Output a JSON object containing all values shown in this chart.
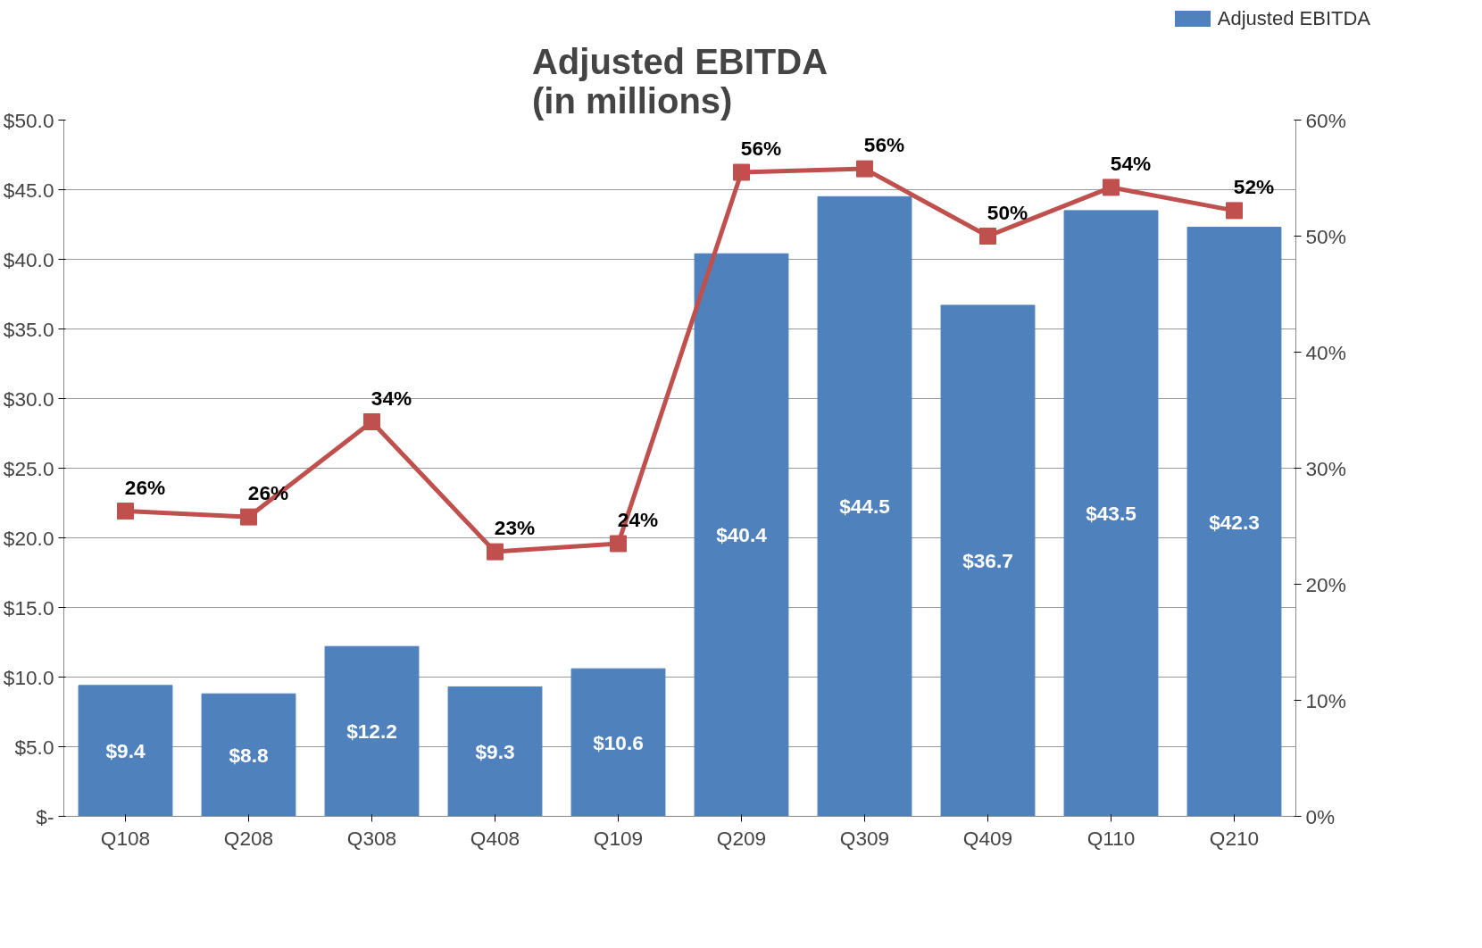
{
  "chart_data": {
    "type": "bar",
    "title": "Adjusted EBITDA\n(in millions)",
    "categories": [
      "Q108",
      "Q208",
      "Q308",
      "Q408",
      "Q109",
      "Q209",
      "Q309",
      "Q409",
      "Q110",
      "Q210"
    ],
    "series": [
      {
        "name": "Adjusted EBITDA",
        "color": "#4f81bd",
        "values": [
          9.4,
          8.8,
          12.2,
          9.3,
          10.6,
          40.4,
          44.5,
          36.7,
          43.5,
          42.3
        ],
        "value_labels": [
          "$9.4",
          "$8.8",
          "$12.2",
          "$9.3",
          "$10.6",
          "$40.4",
          "$44.5",
          "$36.7",
          "$43.5",
          "$42.3"
        ]
      },
      {
        "type": "line",
        "axis": "y2",
        "color": "#c0504d",
        "marker": "square",
        "values": [
          26.3,
          25.8,
          34,
          22.8,
          23.5,
          55.5,
          55.8,
          50,
          54.2,
          52.2
        ],
        "value_labels": [
          "26%",
          "26%",
          "34%",
          "23%",
          "24%",
          "56%",
          "56%",
          "50%",
          "54%",
          "52%"
        ]
      }
    ],
    "ylim": [
      0,
      50
    ],
    "yticks": [
      {
        "value": 0,
        "label": "$-"
      },
      {
        "value": 5,
        "label": "$5.0"
      },
      {
        "value": 10,
        "label": "$10.0"
      },
      {
        "value": 15,
        "label": "$15.0"
      },
      {
        "value": 20,
        "label": "$20.0"
      },
      {
        "value": 25,
        "label": "$25.0"
      },
      {
        "value": 30,
        "label": "$30.0"
      },
      {
        "value": 35,
        "label": "$35.0"
      },
      {
        "value": 40,
        "label": "$40.0"
      },
      {
        "value": 45,
        "label": "$45.0"
      },
      {
        "value": 50,
        "label": "$50.0"
      }
    ],
    "y2lim": [
      0,
      60
    ],
    "y2ticks": [
      {
        "value": 0,
        "label": "0%"
      },
      {
        "value": 10,
        "label": "10%"
      },
      {
        "value": 20,
        "label": "20%"
      },
      {
        "value": 30,
        "label": "30%"
      },
      {
        "value": 40,
        "label": "40%"
      },
      {
        "value": 50,
        "label": "50%"
      },
      {
        "value": 60,
        "label": "60%"
      }
    ],
    "grid": "y",
    "legend": "top right"
  }
}
